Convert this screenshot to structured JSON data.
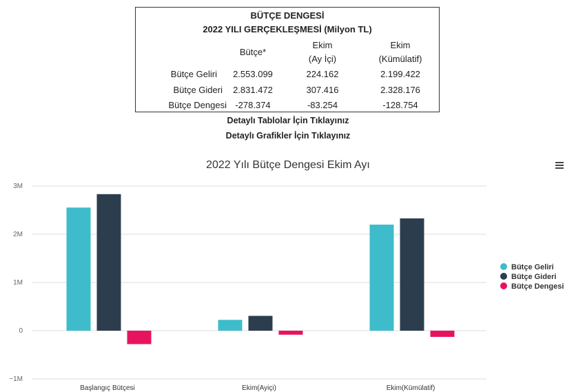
{
  "summary": {
    "title": "BÜTÇE DENGESİ",
    "subtitle": "2022 YILI GERÇEKLEŞMESİ (Milyon TL)",
    "columns": [
      {
        "line1": "Bütçe*",
        "line2": ""
      },
      {
        "line1": "Ekim",
        "line2": "(Ay İçi)"
      },
      {
        "line1": "Ekim",
        "line2": "(Kümülatif)"
      }
    ],
    "rows": [
      {
        "label": "Bütçe Geliri",
        "values": [
          "2.553.099",
          "224.162",
          "2.199.422"
        ]
      },
      {
        "label": "Bütçe Gideri",
        "values": [
          "2.831.472",
          "307.416",
          "2.328.176"
        ]
      },
      {
        "label": "Bütçe Dengesi",
        "values": [
          "-278.374",
          "-83.254",
          "-128.754"
        ]
      }
    ]
  },
  "links": {
    "tables": "Detaylı Tablolar İçin Tıklayınız",
    "charts": "Detaylı Grafikler İçin Tıklayınız"
  },
  "chart_data": {
    "type": "bar",
    "title": "2022 Yılı Bütçe Dengesi Ekim Ayı",
    "categories": [
      "Başlangıç Bütçesi",
      "Ekim(Ayiçi)",
      "Ekim(Kümülatif)"
    ],
    "series": [
      {
        "name": "Bütçe Geliri",
        "color": "#3ebccb",
        "values": [
          2553099,
          224162,
          2199422
        ]
      },
      {
        "name": "Bütçe Gideri",
        "color": "#2c3e4d",
        "values": [
          2831472,
          307416,
          2328176
        ]
      },
      {
        "name": "Bütçe Dengesi",
        "color": "#e8135f",
        "values": [
          -278374,
          -83254,
          -128754
        ]
      }
    ],
    "ylim": [
      -1000000,
      3000000
    ],
    "yticks": [
      {
        "value": 3000000,
        "label": "3M"
      },
      {
        "value": 2000000,
        "label": "2M"
      },
      {
        "value": 1000000,
        "label": "1M"
      },
      {
        "value": 0,
        "label": "0"
      },
      {
        "value": -1000000,
        "label": "−1M"
      }
    ],
    "grid": true,
    "legend_position": "right"
  }
}
